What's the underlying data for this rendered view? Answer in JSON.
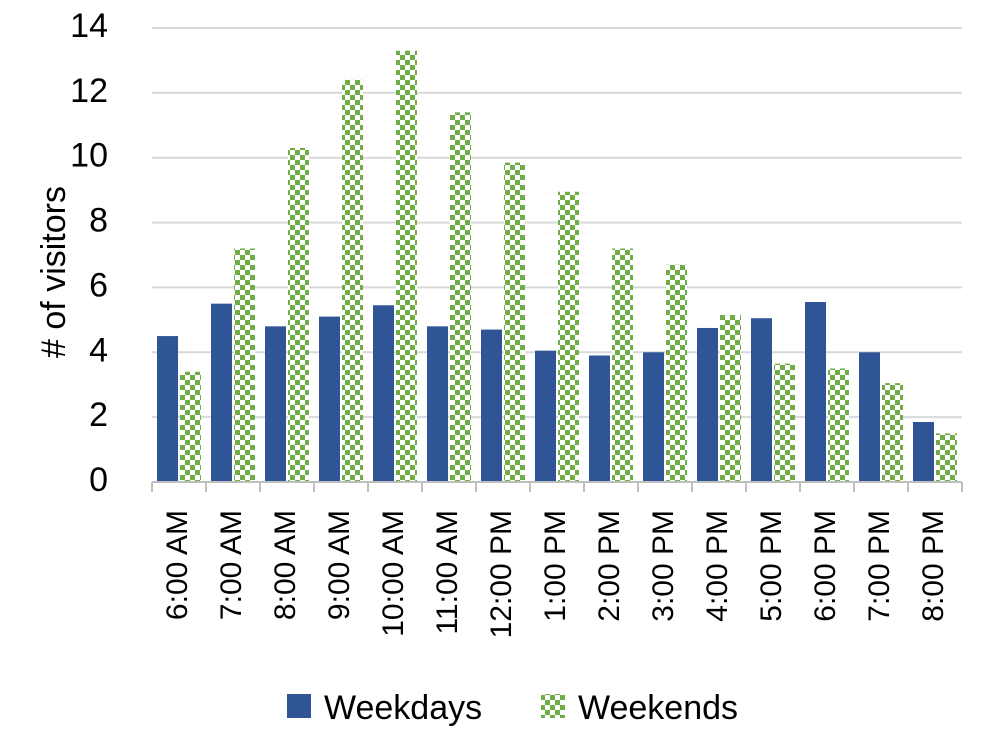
{
  "colors": {
    "weekdays": "#2f5597",
    "weekends": "#70ad47",
    "grid": "#d9d9d9",
    "axis": "#bfbfbf"
  },
  "chart_data": {
    "type": "bar",
    "title": "",
    "xlabel": "",
    "ylabel": "# of visitors",
    "ylim": [
      0,
      14
    ],
    "yticks": [
      0,
      2,
      4,
      6,
      8,
      10,
      12,
      14
    ],
    "grid": true,
    "legend_position": "bottom",
    "categories": [
      "6:00 AM",
      "7:00 AM",
      "8:00 AM",
      "9:00 AM",
      "10:00 AM",
      "11:00 AM",
      "12:00 PM",
      "1:00 PM",
      "2:00 PM",
      "3:00 PM",
      "4:00 PM",
      "5:00 PM",
      "6:00 PM",
      "7:00 PM",
      "8:00 PM"
    ],
    "series": [
      {
        "name": "Weekdays",
        "pattern": "solid",
        "values": [
          4.5,
          5.5,
          4.8,
          5.1,
          5.45,
          4.8,
          4.7,
          4.05,
          3.9,
          4.0,
          4.75,
          5.05,
          5.55,
          4.0,
          1.85
        ]
      },
      {
        "name": "Weekends",
        "pattern": "checker",
        "values": [
          3.4,
          7.2,
          10.3,
          12.4,
          13.3,
          11.4,
          9.85,
          8.95,
          7.2,
          6.7,
          5.15,
          3.65,
          3.5,
          3.05,
          1.5
        ]
      }
    ]
  }
}
